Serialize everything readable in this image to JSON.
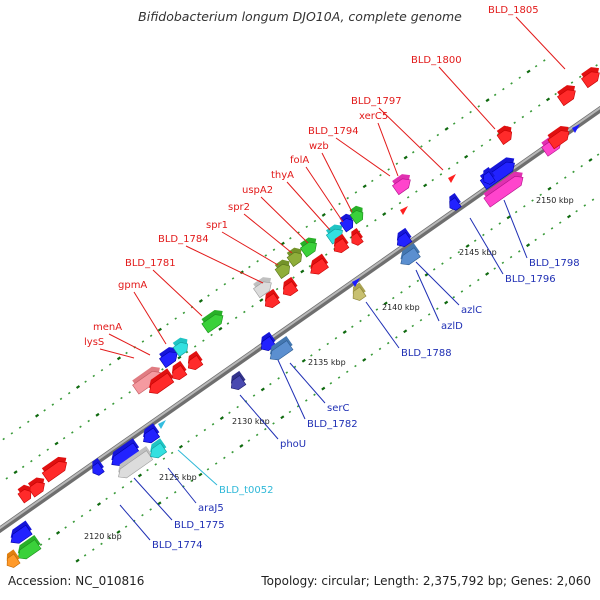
{
  "title": "Bifidobacterium longum DJO10A, complete genome",
  "footer": {
    "accession": "Accession: NC_010816",
    "topology": "Topology: circular; Length: 2,375,792 bp; Genes: 2,060"
  },
  "colors": {
    "label_top": "#e21a1a",
    "label_bottom": "#1f2fb4",
    "label_rna": "#2fb8d8",
    "backbone": "#888888",
    "tick": "#1f7a1f"
  },
  "scale_ticks": [
    "2120 kbp",
    "2125 kbp",
    "2130 kbp",
    "2135 kbp",
    "2140 kbp",
    "2145 kbp",
    "2150 kbp"
  ],
  "top_labels": [
    "lysS",
    "menA",
    "gpmA",
    "BLD_1781",
    "BLD_1784",
    "spr1",
    "spr2",
    "uspA2",
    "thyA",
    "folA",
    "wzb",
    "BLD_1794",
    "xerC5",
    "BLD_1797",
    "BLD_1800",
    "BLD_1805"
  ],
  "bottom_labels": [
    "BLD_1774",
    "BLD_1775",
    "araJ5",
    "BLD_t0052",
    "phoU",
    "BLD_1782",
    "serC",
    "BLD_1788",
    "azlD",
    "azlC",
    "BLD_1796",
    "BLD_1798"
  ],
  "gene_colors": [
    "red",
    "blue",
    "green",
    "cyan",
    "pink",
    "olive",
    "lightgray",
    "orange",
    "magenta",
    "steelblue",
    "navy",
    "khaki",
    "lime"
  ]
}
